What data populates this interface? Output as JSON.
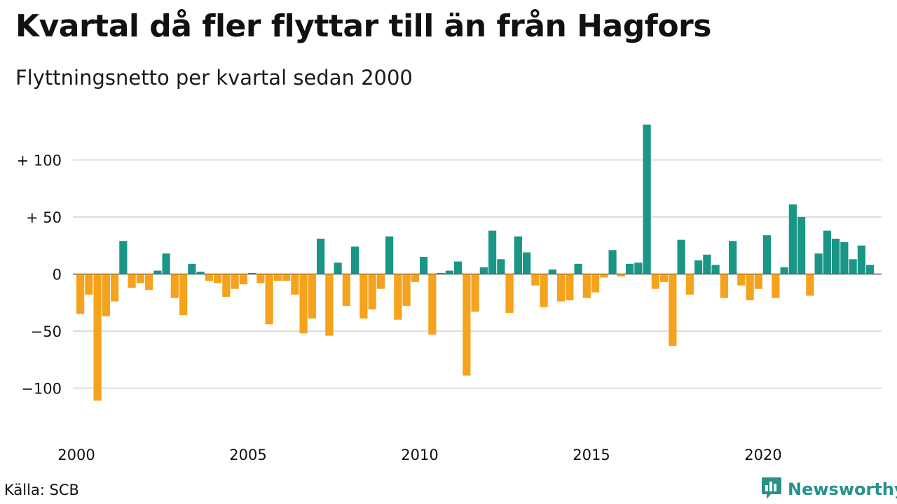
{
  "header": {
    "title": "Kvartal då fler flyttar till än från Hagfors",
    "subtitle": "Flyttningsnetto per kvartal sedan 2000"
  },
  "footer": {
    "source": "Källa: SCB",
    "brand": "Newsworthy",
    "brand_icon": "bar-chart-logo-icon"
  },
  "colors": {
    "positive": "#1a9687",
    "negative": "#f5a21c",
    "grid": "#dddddd",
    "brand": "#27918a"
  },
  "chart_data": {
    "type": "bar",
    "title": "Kvartal då fler flyttar till än från Hagfors",
    "subtitle": "Flyttningsnetto per kvartal sedan 2000",
    "ylim": [
      -130,
      140
    ],
    "y_ticks": [
      {
        "value": 100,
        "label": "+ 100"
      },
      {
        "value": 50,
        "label": "+  50"
      },
      {
        "value": 0,
        "label": "0"
      },
      {
        "value": -50,
        "label": "−50"
      },
      {
        "value": -100,
        "label": "−100"
      }
    ],
    "x_ticks": [
      "2000",
      "2005",
      "2010",
      "2015",
      "2020"
    ],
    "grid": true,
    "start": "2000 Q1",
    "frequency": "quarterly",
    "values": [
      -35,
      -18,
      -111,
      -37,
      -24,
      29,
      -12,
      -8,
      -14,
      3,
      18,
      -21,
      -36,
      9,
      2,
      -6,
      -8,
      -20,
      -13,
      -9,
      1,
      -8,
      -44,
      -6,
      -6,
      -18,
      -52,
      -39,
      31,
      -54,
      10,
      -28,
      24,
      -39,
      -31,
      -13,
      33,
      -40,
      -28,
      -7,
      15,
      -53,
      1,
      3,
      11,
      -89,
      -33,
      6,
      38,
      13,
      -34,
      33,
      19,
      -10,
      -29,
      4,
      -24,
      -23,
      9,
      -21,
      -16,
      -3,
      21,
      -2,
      9,
      10,
      131,
      -13,
      -7,
      -63,
      30,
      -18,
      12,
      17,
      8,
      -21,
      29,
      -10,
      -23,
      -13,
      34,
      -21,
      6,
      61,
      50,
      -19,
      18,
      38,
      31,
      28,
      13,
      25,
      8
    ]
  }
}
